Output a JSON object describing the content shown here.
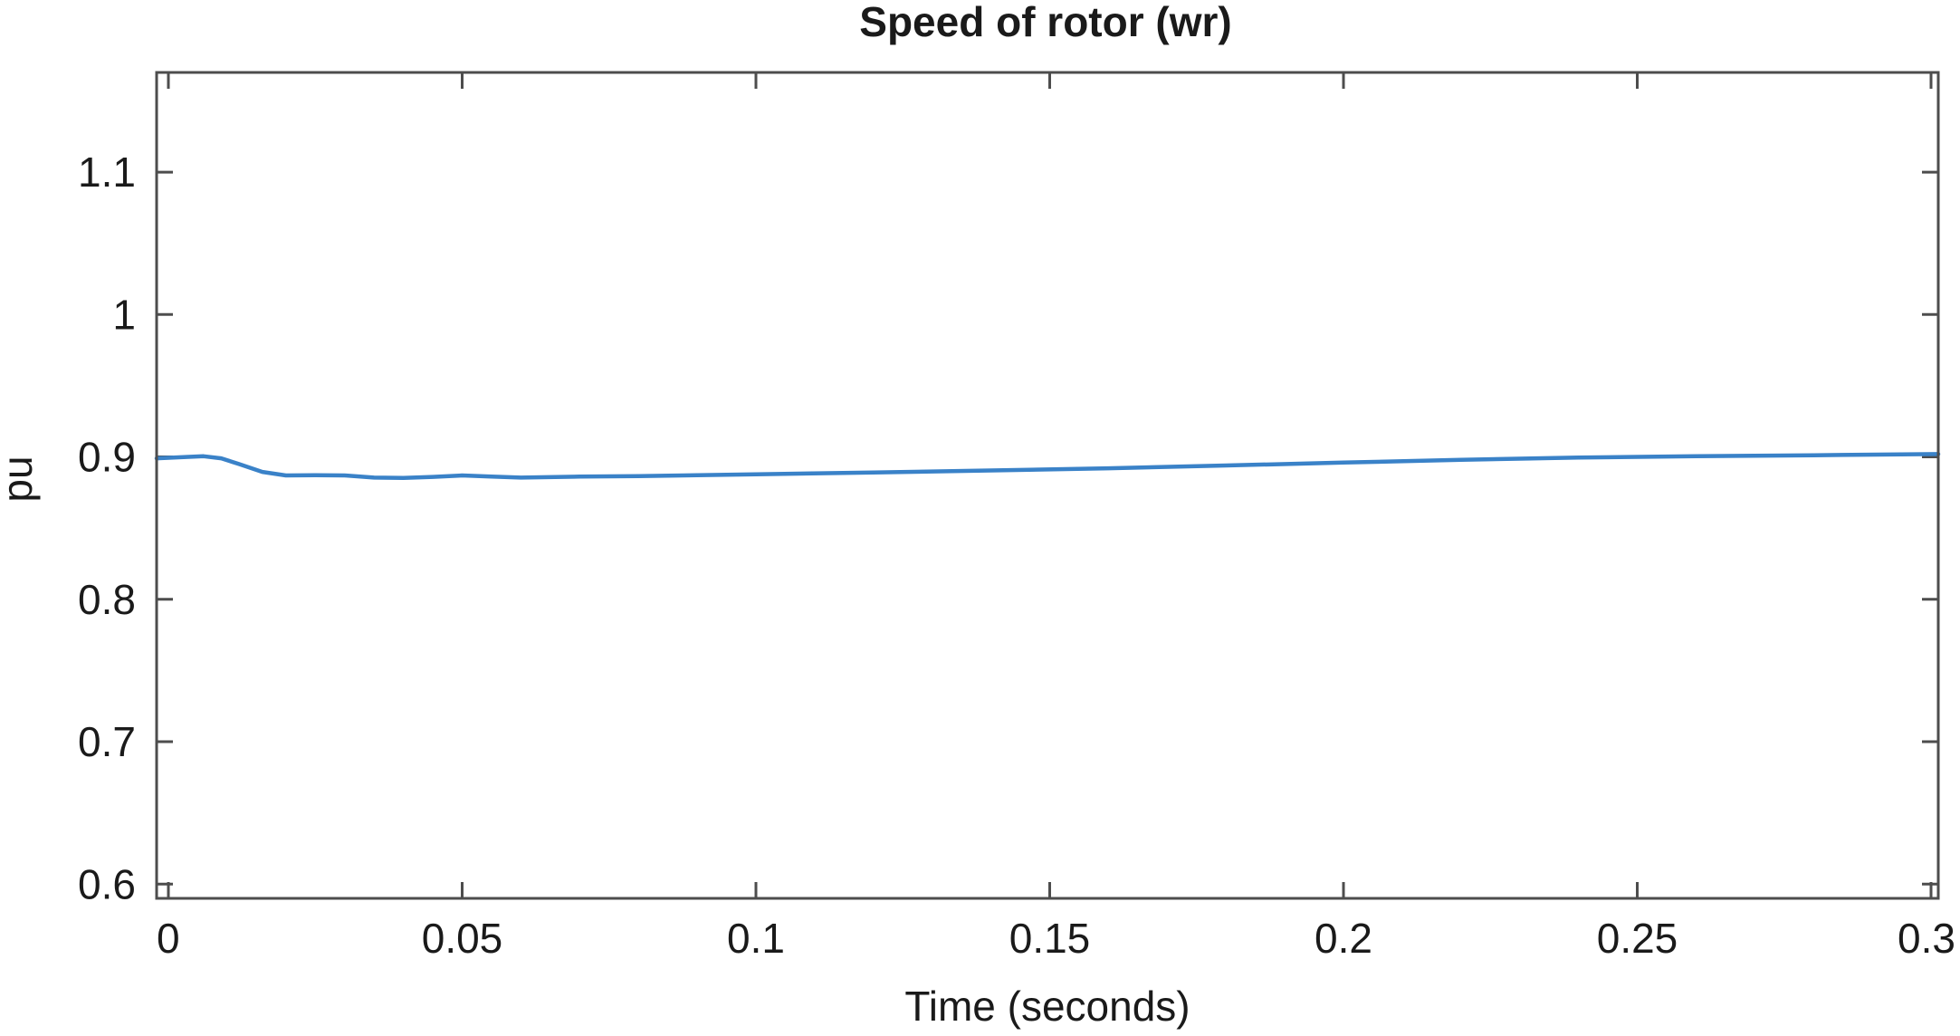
{
  "chart_data": {
    "type": "line",
    "title": "Speed of rotor (wr)",
    "xlabel": "Time (seconds)",
    "ylabel": "pu",
    "xlim": [
      0,
      0.3
    ],
    "ylim": [
      0.59,
      1.17
    ],
    "xticks": [
      0,
      0.05,
      0.1,
      0.15,
      0.2,
      0.25,
      0.3
    ],
    "xtick_labels": [
      "0",
      "0.05",
      "0.1",
      "0.15",
      "0.2",
      "0.25",
      "0.3"
    ],
    "yticks": [
      0.6,
      0.7,
      0.8,
      0.9,
      1.0,
      1.1
    ],
    "ytick_labels": [
      "0.6",
      "0.7",
      "0.8",
      "0.9",
      "1",
      "1.1"
    ],
    "grid": false,
    "colors": {
      "series": "#3a82c8"
    },
    "series": [
      {
        "x": [
          0,
          0.003,
          0.006,
          0.009,
          0.012,
          0.016,
          0.02,
          0.025,
          0.03,
          0.035,
          0.04,
          0.045,
          0.05,
          0.055,
          0.06,
          0.07,
          0.08,
          0.09,
          0.1,
          0.12,
          0.14,
          0.16,
          0.18,
          0.2,
          0.22,
          0.24,
          0.26,
          0.28,
          0.3
        ],
        "y": [
          0.899,
          0.9,
          0.9005,
          0.899,
          0.895,
          0.8895,
          0.887,
          0.8872,
          0.887,
          0.8855,
          0.8852,
          0.886,
          0.887,
          0.8862,
          0.8855,
          0.8862,
          0.8865,
          0.8872,
          0.8878,
          0.889,
          0.8905,
          0.892,
          0.894,
          0.896,
          0.898,
          0.8995,
          0.9005,
          0.9012,
          0.902
        ]
      }
    ]
  }
}
